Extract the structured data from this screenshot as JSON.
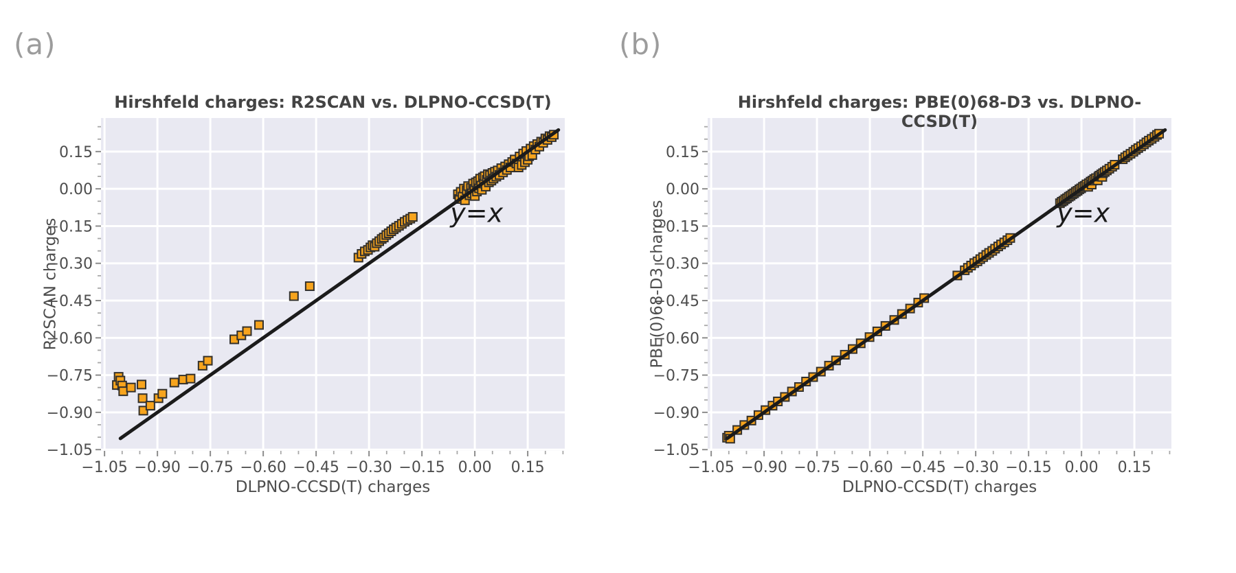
{
  "page": {
    "background": "#ffffff"
  },
  "chart_data": [
    {
      "type": "scatter",
      "panel_label": "(a)",
      "title": "Hirshfeld charges: R2SCAN vs. DLPNO-CCSD(T)",
      "xlabel": "DLPNO-CCSD(T) charges",
      "ylabel": "R2SCAN charges",
      "xlim": [
        -1.06,
        0.255
      ],
      "ylim": [
        -1.055,
        0.285
      ],
      "xticks": [
        -1.05,
        -0.9,
        -0.75,
        -0.6,
        -0.45,
        -0.3,
        -0.15,
        0.0,
        0.15
      ],
      "yticks": [
        -1.05,
        -0.9,
        -0.75,
        -0.6,
        -0.45,
        -0.3,
        -0.15,
        0.0,
        0.15
      ],
      "minor_tick_step": 0.05,
      "grid": true,
      "legend": "none",
      "identity_line": {
        "label": "y=x",
        "x_start": -1.005,
        "x_end": 0.237,
        "label_x": 0.005,
        "label_y": -0.095
      },
      "style": {
        "plot_bg": "#E9E9F2",
        "grid_color": "#FFFFFF",
        "marker_fill": "#F7A41D",
        "marker_edge": "#32302C",
        "line_color": "#1B1B1B",
        "title_color": "#434343",
        "text_color": "#4d4d4d",
        "tick_color": "#8c8c8c"
      },
      "points": [
        [
          -1.015,
          -0.79
        ],
        [
          -1.01,
          -0.757
        ],
        [
          -1.005,
          -0.772
        ],
        [
          -1.0,
          -0.792
        ],
        [
          -0.997,
          -0.815
        ],
        [
          -0.975,
          -0.8
        ],
        [
          -0.945,
          -0.788
        ],
        [
          -0.942,
          -0.843
        ],
        [
          -0.94,
          -0.893
        ],
        [
          -0.92,
          -0.873
        ],
        [
          -0.897,
          -0.843
        ],
        [
          -0.886,
          -0.825
        ],
        [
          -0.852,
          -0.78
        ],
        [
          -0.827,
          -0.768
        ],
        [
          -0.806,
          -0.764
        ],
        [
          -0.772,
          -0.712
        ],
        [
          -0.757,
          -0.692
        ],
        [
          -0.682,
          -0.606
        ],
        [
          -0.662,
          -0.59
        ],
        [
          -0.646,
          -0.573
        ],
        [
          -0.612,
          -0.548
        ],
        [
          -0.513,
          -0.432
        ],
        [
          -0.468,
          -0.392
        ],
        [
          -0.33,
          -0.277
        ],
        [
          -0.321,
          -0.262
        ],
        [
          -0.312,
          -0.252
        ],
        [
          -0.303,
          -0.246
        ],
        [
          -0.296,
          -0.236
        ],
        [
          -0.29,
          -0.227
        ],
        [
          -0.284,
          -0.233
        ],
        [
          -0.278,
          -0.219
        ],
        [
          -0.271,
          -0.211
        ],
        [
          -0.264,
          -0.202
        ],
        [
          -0.258,
          -0.196
        ],
        [
          -0.251,
          -0.186
        ],
        [
          -0.244,
          -0.179
        ],
        [
          -0.237,
          -0.171
        ],
        [
          -0.23,
          -0.163
        ],
        [
          -0.223,
          -0.156
        ],
        [
          -0.215,
          -0.149
        ],
        [
          -0.207,
          -0.141
        ],
        [
          -0.199,
          -0.133
        ],
        [
          -0.191,
          -0.126
        ],
        [
          -0.183,
          -0.12
        ],
        [
          -0.176,
          -0.113
        ],
        [
          -0.048,
          -0.022
        ],
        [
          -0.044,
          -0.041
        ],
        [
          -0.04,
          -0.012
        ],
        [
          -0.035,
          -0.031
        ],
        [
          -0.031,
          0.001
        ],
        [
          -0.028,
          -0.046
        ],
        [
          -0.023,
          -0.006
        ],
        [
          -0.019,
          0.011
        ],
        [
          -0.015,
          -0.026
        ],
        [
          -0.011,
          0.004
        ],
        [
          -0.008,
          -0.018
        ],
        [
          -0.005,
          0.021
        ],
        [
          -0.001,
          0.0
        ],
        [
          0.0,
          -0.029
        ],
        [
          0.003,
          0.026
        ],
        [
          0.006,
          -0.011
        ],
        [
          0.009,
          0.031
        ],
        [
          0.012,
          0.002
        ],
        [
          0.015,
          0.041
        ],
        [
          0.018,
          0.013
        ],
        [
          0.02,
          -0.004
        ],
        [
          0.023,
          0.046
        ],
        [
          0.026,
          0.021
        ],
        [
          0.028,
          0.051
        ],
        [
          0.031,
          0.009
        ],
        [
          0.034,
          0.036
        ],
        [
          0.037,
          0.059
        ],
        [
          0.04,
          0.026
        ],
        [
          0.043,
          0.055
        ],
        [
          0.047,
          0.033
        ],
        [
          0.05,
          0.064
        ],
        [
          0.053,
          0.041
        ],
        [
          0.057,
          0.069
        ],
        [
          0.061,
          0.049
        ],
        [
          0.065,
          0.074
        ],
        [
          0.07,
          0.056
        ],
        [
          0.075,
          0.083
        ],
        [
          0.08,
          0.066
        ],
        [
          0.086,
          0.09
        ],
        [
          0.091,
          0.076
        ],
        [
          0.096,
          0.099
        ],
        [
          0.101,
          0.086
        ],
        [
          0.106,
          0.108
        ],
        [
          0.113,
          0.118
        ],
        [
          0.118,
          0.102
        ],
        [
          0.124,
          0.086
        ],
        [
          0.127,
          0.13
        ],
        [
          0.133,
          0.096
        ],
        [
          0.137,
          0.142
        ],
        [
          0.142,
          0.107
        ],
        [
          0.146,
          0.152
        ],
        [
          0.15,
          0.117
        ],
        [
          0.154,
          0.131
        ],
        [
          0.158,
          0.162
        ],
        [
          0.163,
          0.136
        ],
        [
          0.167,
          0.172
        ],
        [
          0.172,
          0.158
        ],
        [
          0.177,
          0.18
        ],
        [
          0.183,
          0.17
        ],
        [
          0.188,
          0.19
        ],
        [
          0.194,
          0.185
        ],
        [
          0.2,
          0.203
        ],
        [
          0.206,
          0.197
        ],
        [
          0.212,
          0.212
        ],
        [
          0.218,
          0.208
        ],
        [
          0.224,
          0.218
        ]
      ]
    },
    {
      "type": "scatter",
      "panel_label": "(b)",
      "title": "Hirshfeld charges: PBE(0)68-D3 vs. DLPNO-CCSD(T)",
      "xlabel": "DLPNO-CCSD(T) charges",
      "ylabel": "PBE(0)68-D3 charges",
      "xlim": [
        -1.06,
        0.255
      ],
      "ylim": [
        -1.055,
        0.285
      ],
      "xticks": [
        -1.05,
        -0.9,
        -0.75,
        -0.6,
        -0.45,
        -0.3,
        -0.15,
        0.0,
        0.15
      ],
      "yticks": [
        -1.05,
        -0.9,
        -0.75,
        -0.6,
        -0.45,
        -0.3,
        -0.15,
        0.0,
        0.15
      ],
      "minor_tick_step": 0.05,
      "grid": true,
      "legend": "none",
      "identity_line": {
        "label": "y=x",
        "x_start": -1.005,
        "x_end": 0.237,
        "label_x": 0.005,
        "label_y": -0.095
      },
      "style": {
        "plot_bg": "#E9E9F2",
        "grid_color": "#FFFFFF",
        "marker_fill": "#F7A41D",
        "marker_edge": "#32302C",
        "line_color": "#1B1B1B",
        "title_color": "#434343",
        "text_color": "#4d4d4d",
        "tick_color": "#8c8c8c"
      },
      "points": [
        [
          -1.005,
          -1.002
        ],
        [
          -1.0,
          -0.994
        ],
        [
          -0.996,
          -1.006
        ],
        [
          -0.976,
          -0.971
        ],
        [
          -0.956,
          -0.951
        ],
        [
          -0.936,
          -0.933
        ],
        [
          -0.916,
          -0.911
        ],
        [
          -0.896,
          -0.891
        ],
        [
          -0.876,
          -0.873
        ],
        [
          -0.861,
          -0.856
        ],
        [
          -0.841,
          -0.838
        ],
        [
          -0.821,
          -0.816
        ],
        [
          -0.801,
          -0.798
        ],
        [
          -0.781,
          -0.776
        ],
        [
          -0.761,
          -0.758
        ],
        [
          -0.739,
          -0.736
        ],
        [
          -0.716,
          -0.712
        ],
        [
          -0.696,
          -0.691
        ],
        [
          -0.671,
          -0.668
        ],
        [
          -0.649,
          -0.645
        ],
        [
          -0.626,
          -0.622
        ],
        [
          -0.601,
          -0.597
        ],
        [
          -0.579,
          -0.574
        ],
        [
          -0.556,
          -0.552
        ],
        [
          -0.531,
          -0.528
        ],
        [
          -0.509,
          -0.504
        ],
        [
          -0.486,
          -0.482
        ],
        [
          -0.463,
          -0.458
        ],
        [
          -0.446,
          -0.44
        ],
        [
          -0.352,
          -0.349
        ],
        [
          -0.331,
          -0.328
        ],
        [
          -0.322,
          -0.318
        ],
        [
          -0.313,
          -0.309
        ],
        [
          -0.304,
          -0.299
        ],
        [
          -0.295,
          -0.292
        ],
        [
          -0.287,
          -0.283
        ],
        [
          -0.279,
          -0.275
        ],
        [
          -0.27,
          -0.266
        ],
        [
          -0.262,
          -0.258
        ],
        [
          -0.253,
          -0.25
        ],
        [
          -0.245,
          -0.241
        ],
        [
          -0.236,
          -0.232
        ],
        [
          -0.228,
          -0.224
        ],
        [
          -0.219,
          -0.216
        ],
        [
          -0.21,
          -0.207
        ],
        [
          -0.202,
          -0.198
        ],
        [
          -0.061,
          -0.058
        ],
        [
          -0.056,
          -0.052
        ],
        [
          -0.051,
          -0.048
        ],
        [
          -0.046,
          -0.042
        ],
        [
          -0.041,
          -0.038
        ],
        [
          -0.036,
          -0.032
        ],
        [
          -0.031,
          -0.028
        ],
        [
          -0.026,
          -0.022
        ],
        [
          -0.021,
          -0.018
        ],
        [
          -0.016,
          -0.012
        ],
        [
          -0.011,
          -0.008
        ],
        [
          -0.006,
          -0.002
        ],
        [
          -0.001,
          0.002
        ],
        [
          0.004,
          0.008
        ],
        [
          0.009,
          0.012
        ],
        [
          0.014,
          0.018
        ],
        [
          0.019,
          0.008
        ],
        [
          0.021,
          0.023
        ],
        [
          0.026,
          0.029
        ],
        [
          0.029,
          0.017
        ],
        [
          0.031,
          0.033
        ],
        [
          0.036,
          0.039
        ],
        [
          0.041,
          0.043
        ],
        [
          0.046,
          0.034
        ],
        [
          0.048,
          0.049
        ],
        [
          0.051,
          0.053
        ],
        [
          0.056,
          0.058
        ],
        [
          0.059,
          0.048
        ],
        [
          0.061,
          0.063
        ],
        [
          0.066,
          0.068
        ],
        [
          0.072,
          0.074
        ],
        [
          0.079,
          0.081
        ],
        [
          0.087,
          0.089
        ],
        [
          0.094,
          0.097
        ],
        [
          0.117,
          0.119
        ],
        [
          0.124,
          0.127
        ],
        [
          0.131,
          0.134
        ],
        [
          0.139,
          0.141
        ],
        [
          0.147,
          0.149
        ],
        [
          0.154,
          0.157
        ],
        [
          0.161,
          0.164
        ],
        [
          0.169,
          0.171
        ],
        [
          0.177,
          0.179
        ],
        [
          0.184,
          0.187
        ],
        [
          0.191,
          0.194
        ],
        [
          0.199,
          0.201
        ],
        [
          0.207,
          0.209
        ],
        [
          0.214,
          0.217
        ],
        [
          0.22,
          0.222
        ]
      ]
    }
  ]
}
